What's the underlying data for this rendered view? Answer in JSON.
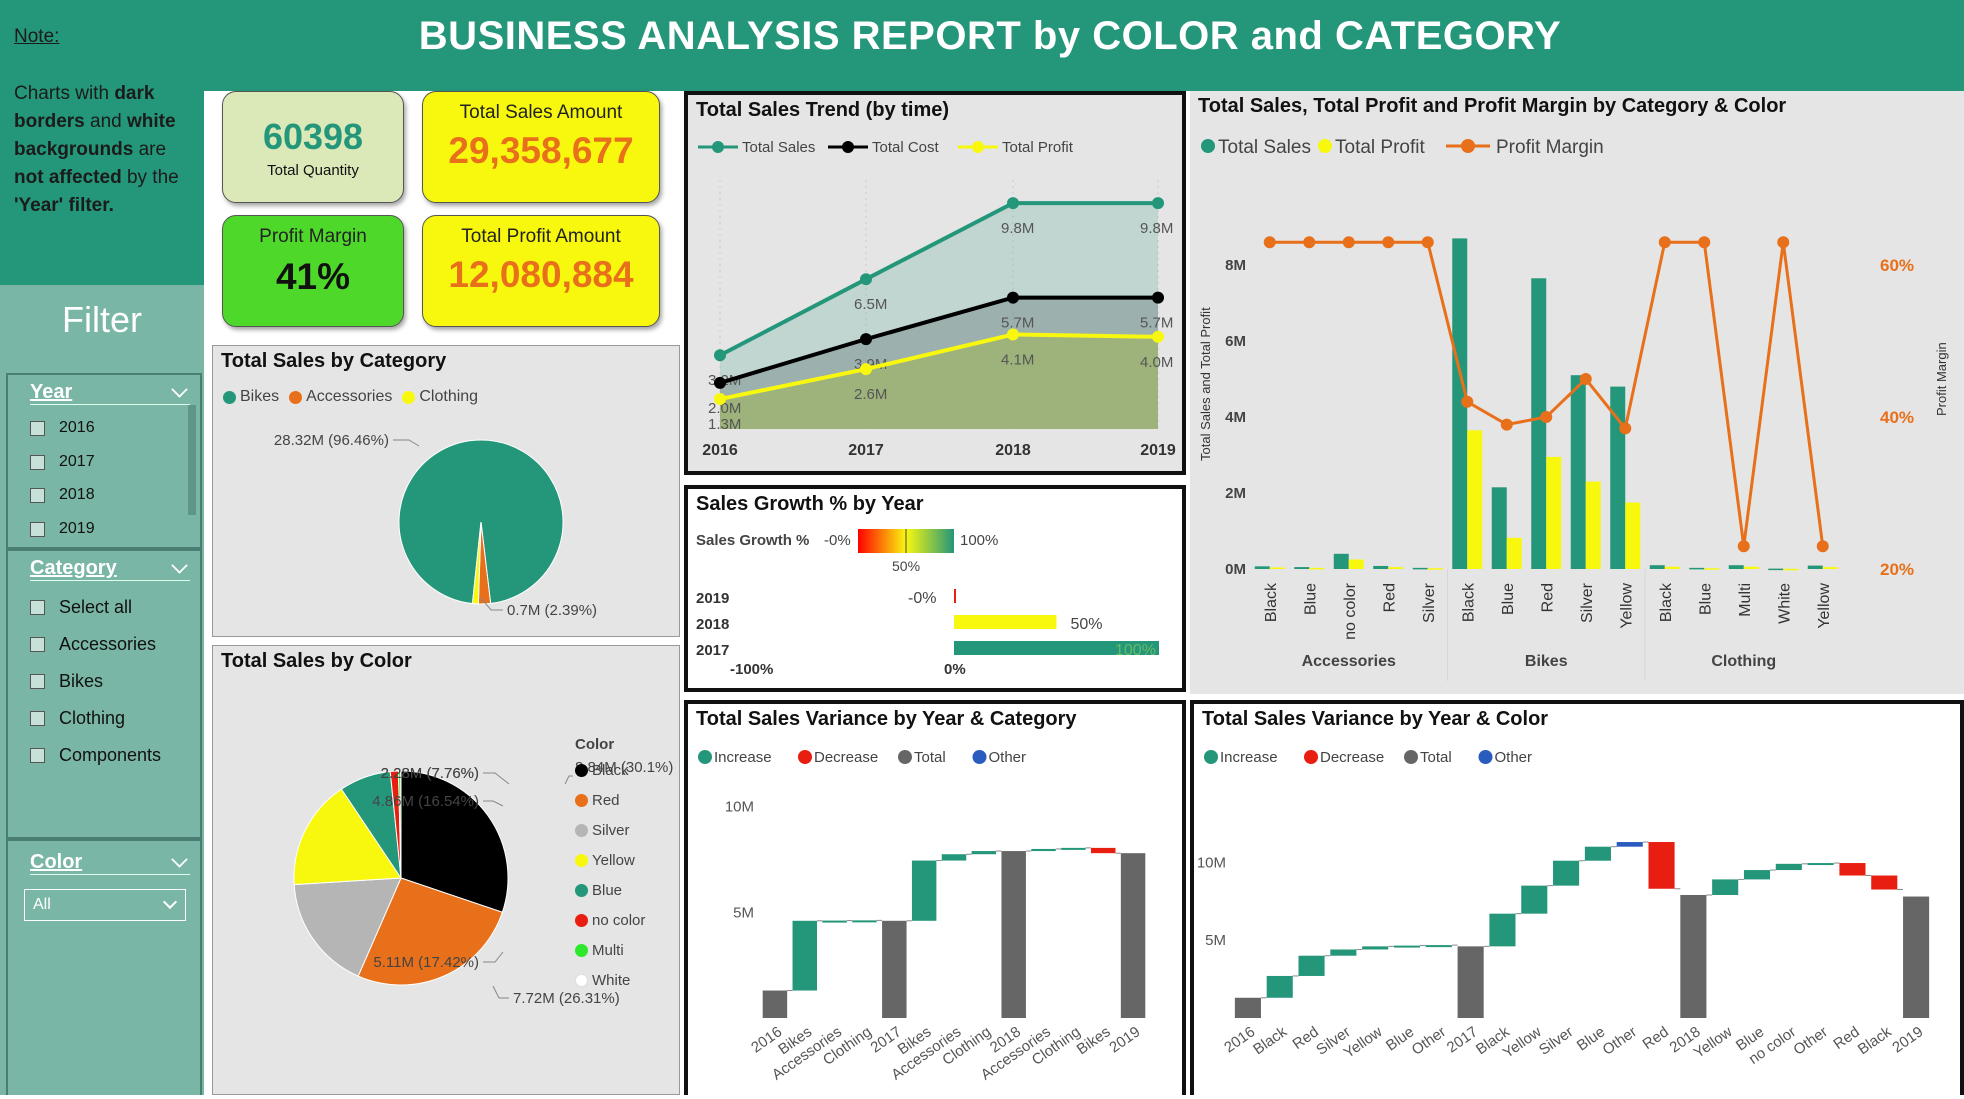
{
  "header": {
    "title": "BUSINESS ANALYSIS REPORT by COLOR and CATEGORY",
    "note_label": "Note:"
  },
  "note": {
    "t1": "Charts with ",
    "t2": "dark borders",
    "t3": " and ",
    "t4": "white backgrounds",
    "t5": " are ",
    "t6": "not affected",
    "t7": " by the ",
    "t8": "'Year' filter."
  },
  "filter": {
    "title": "Filter",
    "year": {
      "title": "Year",
      "options": [
        "2016",
        "2017",
        "2018",
        "2019"
      ]
    },
    "category": {
      "title": "Category",
      "options": [
        "Select all",
        "Accessories",
        "Bikes",
        "Clothing",
        "Components"
      ]
    },
    "color": {
      "title": "Color",
      "value": "All"
    }
  },
  "kpis": {
    "quantity": {
      "value": "60398",
      "label": "Total Quantity"
    },
    "sales": {
      "label": "Total Sales Amount",
      "value": "29,358,677"
    },
    "margin": {
      "label": "Profit Margin",
      "value": "41%"
    },
    "profit": {
      "label": "Total Profit Amount",
      "value": "12,080,884"
    }
  },
  "colors": {
    "teal": "#24967a",
    "orange": "#e8701a",
    "yellow": "#f8f80f",
    "red": "#e81e10",
    "gray": "#666666",
    "blue": "#2a5bbf"
  },
  "chart_data": [
    {
      "id": "sales_category",
      "type": "pie",
      "title": "Total Sales by Category",
      "legend": [
        "Bikes",
        "Accessories",
        "Clothing"
      ],
      "slices": [
        {
          "label": "Bikes",
          "value": 28.32,
          "display": "28.32M (96.46%)"
        },
        {
          "label": "Accessories",
          "value": 0.7,
          "display": "0.7M (2.39%)"
        },
        {
          "label": "Clothing",
          "value": 0.34,
          "display": ""
        }
      ]
    },
    {
      "id": "sales_color",
      "type": "pie",
      "title": "Total Sales by Color",
      "legend_title": "Color",
      "legend": [
        "Black",
        "Red",
        "Silver",
        "Yellow",
        "Blue",
        "no color",
        "Multi",
        "White"
      ],
      "slices": [
        {
          "label": "Black",
          "value": 8.84,
          "display": "8.84M (30.1%)"
        },
        {
          "label": "Red",
          "value": 7.72,
          "display": "7.72M (26.31%)"
        },
        {
          "label": "Silver",
          "value": 5.11,
          "display": "5.11M (17.42%)"
        },
        {
          "label": "Yellow",
          "value": 4.86,
          "display": "4.86M (16.54%)"
        },
        {
          "label": "Blue",
          "value": 2.28,
          "display": "2.28M (7.76%)"
        },
        {
          "label": "no color",
          "value": 0.36,
          "display": ""
        },
        {
          "label": "Multi",
          "value": 0.1,
          "display": ""
        },
        {
          "label": "White",
          "value": 0.01,
          "display": ""
        }
      ]
    },
    {
      "id": "sales_trend",
      "type": "area",
      "title": "Total Sales Trend (by time)",
      "legend": [
        "Total Sales",
        "Total Cost",
        "Total Profit"
      ],
      "x": [
        "2016",
        "2017",
        "2018",
        "2019"
      ],
      "series": [
        {
          "name": "Total Sales",
          "values": [
            3.2,
            6.5,
            9.8,
            9.8
          ],
          "labels": [
            "3.2M",
            "6.5M",
            "9.8M",
            "9.8M"
          ]
        },
        {
          "name": "Total Cost",
          "values": [
            2.0,
            3.9,
            5.7,
            5.7
          ],
          "labels": [
            "2.0M",
            "3.9M",
            "5.7M",
            "5.7M"
          ]
        },
        {
          "name": "Total Profit",
          "values": [
            1.3,
            2.6,
            4.1,
            4.0
          ],
          "labels": [
            "1.3M",
            "2.6M",
            "4.1M",
            "4.0M"
          ]
        }
      ]
    },
    {
      "id": "sales_growth",
      "type": "bar",
      "title": "Sales Growth % by Year",
      "legend_label": "Sales Growth %",
      "scale_labels": [
        "-0%",
        "50%",
        "100%"
      ],
      "categories": [
        "2019",
        "2018",
        "2017"
      ],
      "values": [
        0,
        50,
        100
      ],
      "labels": [
        "-0%",
        "50%",
        "100%"
      ],
      "axis_labels": [
        "-100%",
        "0%"
      ]
    },
    {
      "id": "profit_margin",
      "type": "bar",
      "title": "Total Sales, Total Profit and Profit Margin by Category & Color",
      "legend": [
        "Total Sales",
        "Total Profit",
        "Profit Margin"
      ],
      "ylabel": "Total Sales and Total Profit",
      "y2label": "Profit Margin",
      "yticks": [
        "0M",
        "2M",
        "4M",
        "6M",
        "8M"
      ],
      "y2ticks": [
        "20%",
        "40%",
        "60%"
      ],
      "groups": [
        "Accessories",
        "Bikes",
        "Clothing"
      ],
      "categories": [
        "Black",
        "Blue",
        "no color",
        "Red",
        "Silver",
        "Black",
        "Blue",
        "Red",
        "Silver",
        "Yellow",
        "Black",
        "Blue",
        "Multi",
        "White",
        "Yellow"
      ],
      "group_index": [
        0,
        0,
        0,
        0,
        0,
        1,
        1,
        1,
        1,
        1,
        2,
        2,
        2,
        2,
        2
      ],
      "sales": [
        0.07,
        0.05,
        0.4,
        0.08,
        0.03,
        8.7,
        2.15,
        7.65,
        5.1,
        4.8,
        0.1,
        0.03,
        0.1,
        0.01,
        0.09
      ],
      "profit": [
        0.04,
        0.03,
        0.25,
        0.05,
        0.02,
        3.65,
        0.82,
        2.95,
        2.3,
        1.75,
        0.06,
        0.02,
        0.06,
        0.005,
        0.05
      ],
      "margin": [
        63,
        63,
        63,
        63,
        63,
        42,
        39,
        40,
        45,
        38.5,
        63,
        63,
        23,
        63,
        23
      ]
    },
    {
      "id": "variance_category",
      "type": "bar",
      "title": "Total Sales Variance by Year & Category",
      "legend": [
        "Increase",
        "Decrease",
        "Total",
        "Other"
      ],
      "yticks": [
        "5M",
        "10M"
      ],
      "categories": [
        "2016",
        "Bikes",
        "Accessories",
        "Clothing",
        "2017",
        "Bikes",
        "Accessories",
        "Clothing",
        "2018",
        "Accessories",
        "Clothing",
        "Bikes",
        "2019"
      ],
      "kind": [
        "total",
        "inc",
        "inc",
        "inc",
        "total",
        "inc",
        "inc",
        "inc",
        "total",
        "inc",
        "inc",
        "dec",
        "total"
      ],
      "values": [
        1.3,
        3.3,
        0.01,
        0.01,
        4.6,
        2.85,
        0.3,
        0.15,
        7.9,
        0.1,
        0.05,
        -0.25,
        7.8
      ]
    },
    {
      "id": "variance_color",
      "type": "bar",
      "title": "Total Sales Variance by Year & Color",
      "legend": [
        "Increase",
        "Decrease",
        "Total",
        "Other"
      ],
      "yticks": [
        "5M",
        "10M"
      ],
      "categories": [
        "2016",
        "Black",
        "Red",
        "Silver",
        "Yellow",
        "Blue",
        "Other",
        "2017",
        "Black",
        "Yellow",
        "Silver",
        "Blue",
        "Other",
        "Red",
        "2018",
        "Yellow",
        "Blue",
        "no color",
        "Other",
        "Red",
        "Black",
        "2019"
      ],
      "kind": [
        "total",
        "inc",
        "inc",
        "inc",
        "inc",
        "inc",
        "inc",
        "total",
        "inc",
        "inc",
        "inc",
        "inc",
        "other",
        "dec",
        "total",
        "inc",
        "inc",
        "inc",
        "inc",
        "dec",
        "dec",
        "total"
      ],
      "values": [
        1.3,
        1.4,
        1.3,
        0.4,
        0.2,
        0.05,
        0.03,
        4.6,
        2.1,
        1.8,
        1.6,
        0.9,
        0.3,
        -3.0,
        7.9,
        1.0,
        0.6,
        0.4,
        0.05,
        -0.8,
        -0.9,
        7.8
      ]
    }
  ]
}
